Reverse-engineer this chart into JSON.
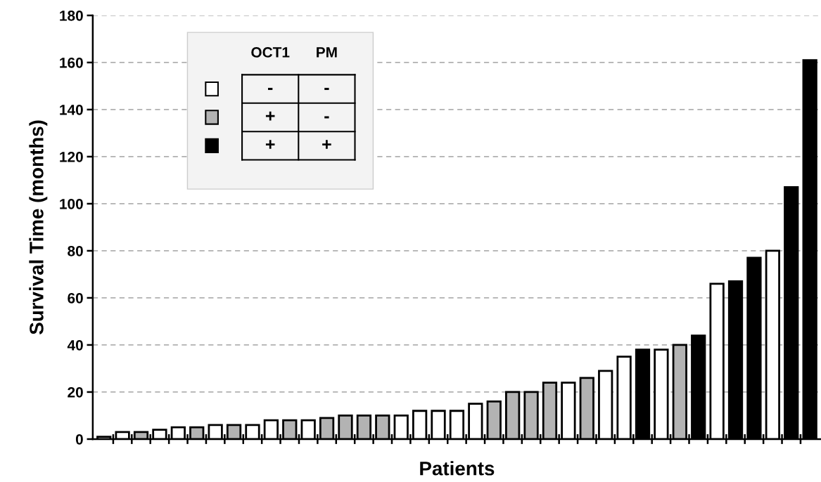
{
  "chart_data": {
    "type": "bar",
    "xlabel": "Patients",
    "ylabel": "Survival Time (months)",
    "categories": [
      null,
      null,
      null,
      null,
      null,
      null,
      null,
      null,
      null,
      null,
      null,
      null,
      null,
      null,
      null,
      null,
      null,
      null,
      null,
      null,
      null,
      null,
      null,
      null,
      null,
      null,
      null,
      null,
      null,
      null,
      null,
      null,
      null,
      null,
      null,
      null,
      null,
      null,
      null
    ],
    "values": [
      1,
      3,
      3,
      4,
      5,
      5,
      6,
      6,
      6,
      8,
      8,
      8,
      9,
      10,
      10,
      10,
      10,
      12,
      12,
      12,
      15,
      16,
      20,
      20,
      24,
      24,
      26,
      29,
      35,
      38,
      38,
      40,
      44,
      66,
      67,
      77,
      80,
      107,
      161
    ],
    "colors": [
      "#ffffff",
      "#ffffff",
      "#b3b3b3",
      "#ffffff",
      "#ffffff",
      "#b3b3b3",
      "#ffffff",
      "#b3b3b3",
      "#ffffff",
      "#ffffff",
      "#b3b3b3",
      "#ffffff",
      "#b3b3b3",
      "#b3b3b3",
      "#b3b3b3",
      "#b3b3b3",
      "#ffffff",
      "#ffffff",
      "#ffffff",
      "#ffffff",
      "#ffffff",
      "#b3b3b3",
      "#b3b3b3",
      "#b3b3b3",
      "#b3b3b3",
      "#ffffff",
      "#b3b3b3",
      "#ffffff",
      "#ffffff",
      "#000000",
      "#ffffff",
      "#b3b3b3",
      "#000000",
      "#ffffff",
      "#000000",
      "#000000",
      "#ffffff",
      "#000000",
      "#000000"
    ],
    "ylim": [
      0,
      180
    ],
    "yticks": [
      0,
      20,
      40,
      60,
      80,
      100,
      120,
      140,
      160,
      180
    ],
    "grid": "y",
    "annotations": [
      "OCT1",
      "PM",
      "-",
      "-",
      "+",
      "-",
      "+",
      "+"
    ]
  }
}
